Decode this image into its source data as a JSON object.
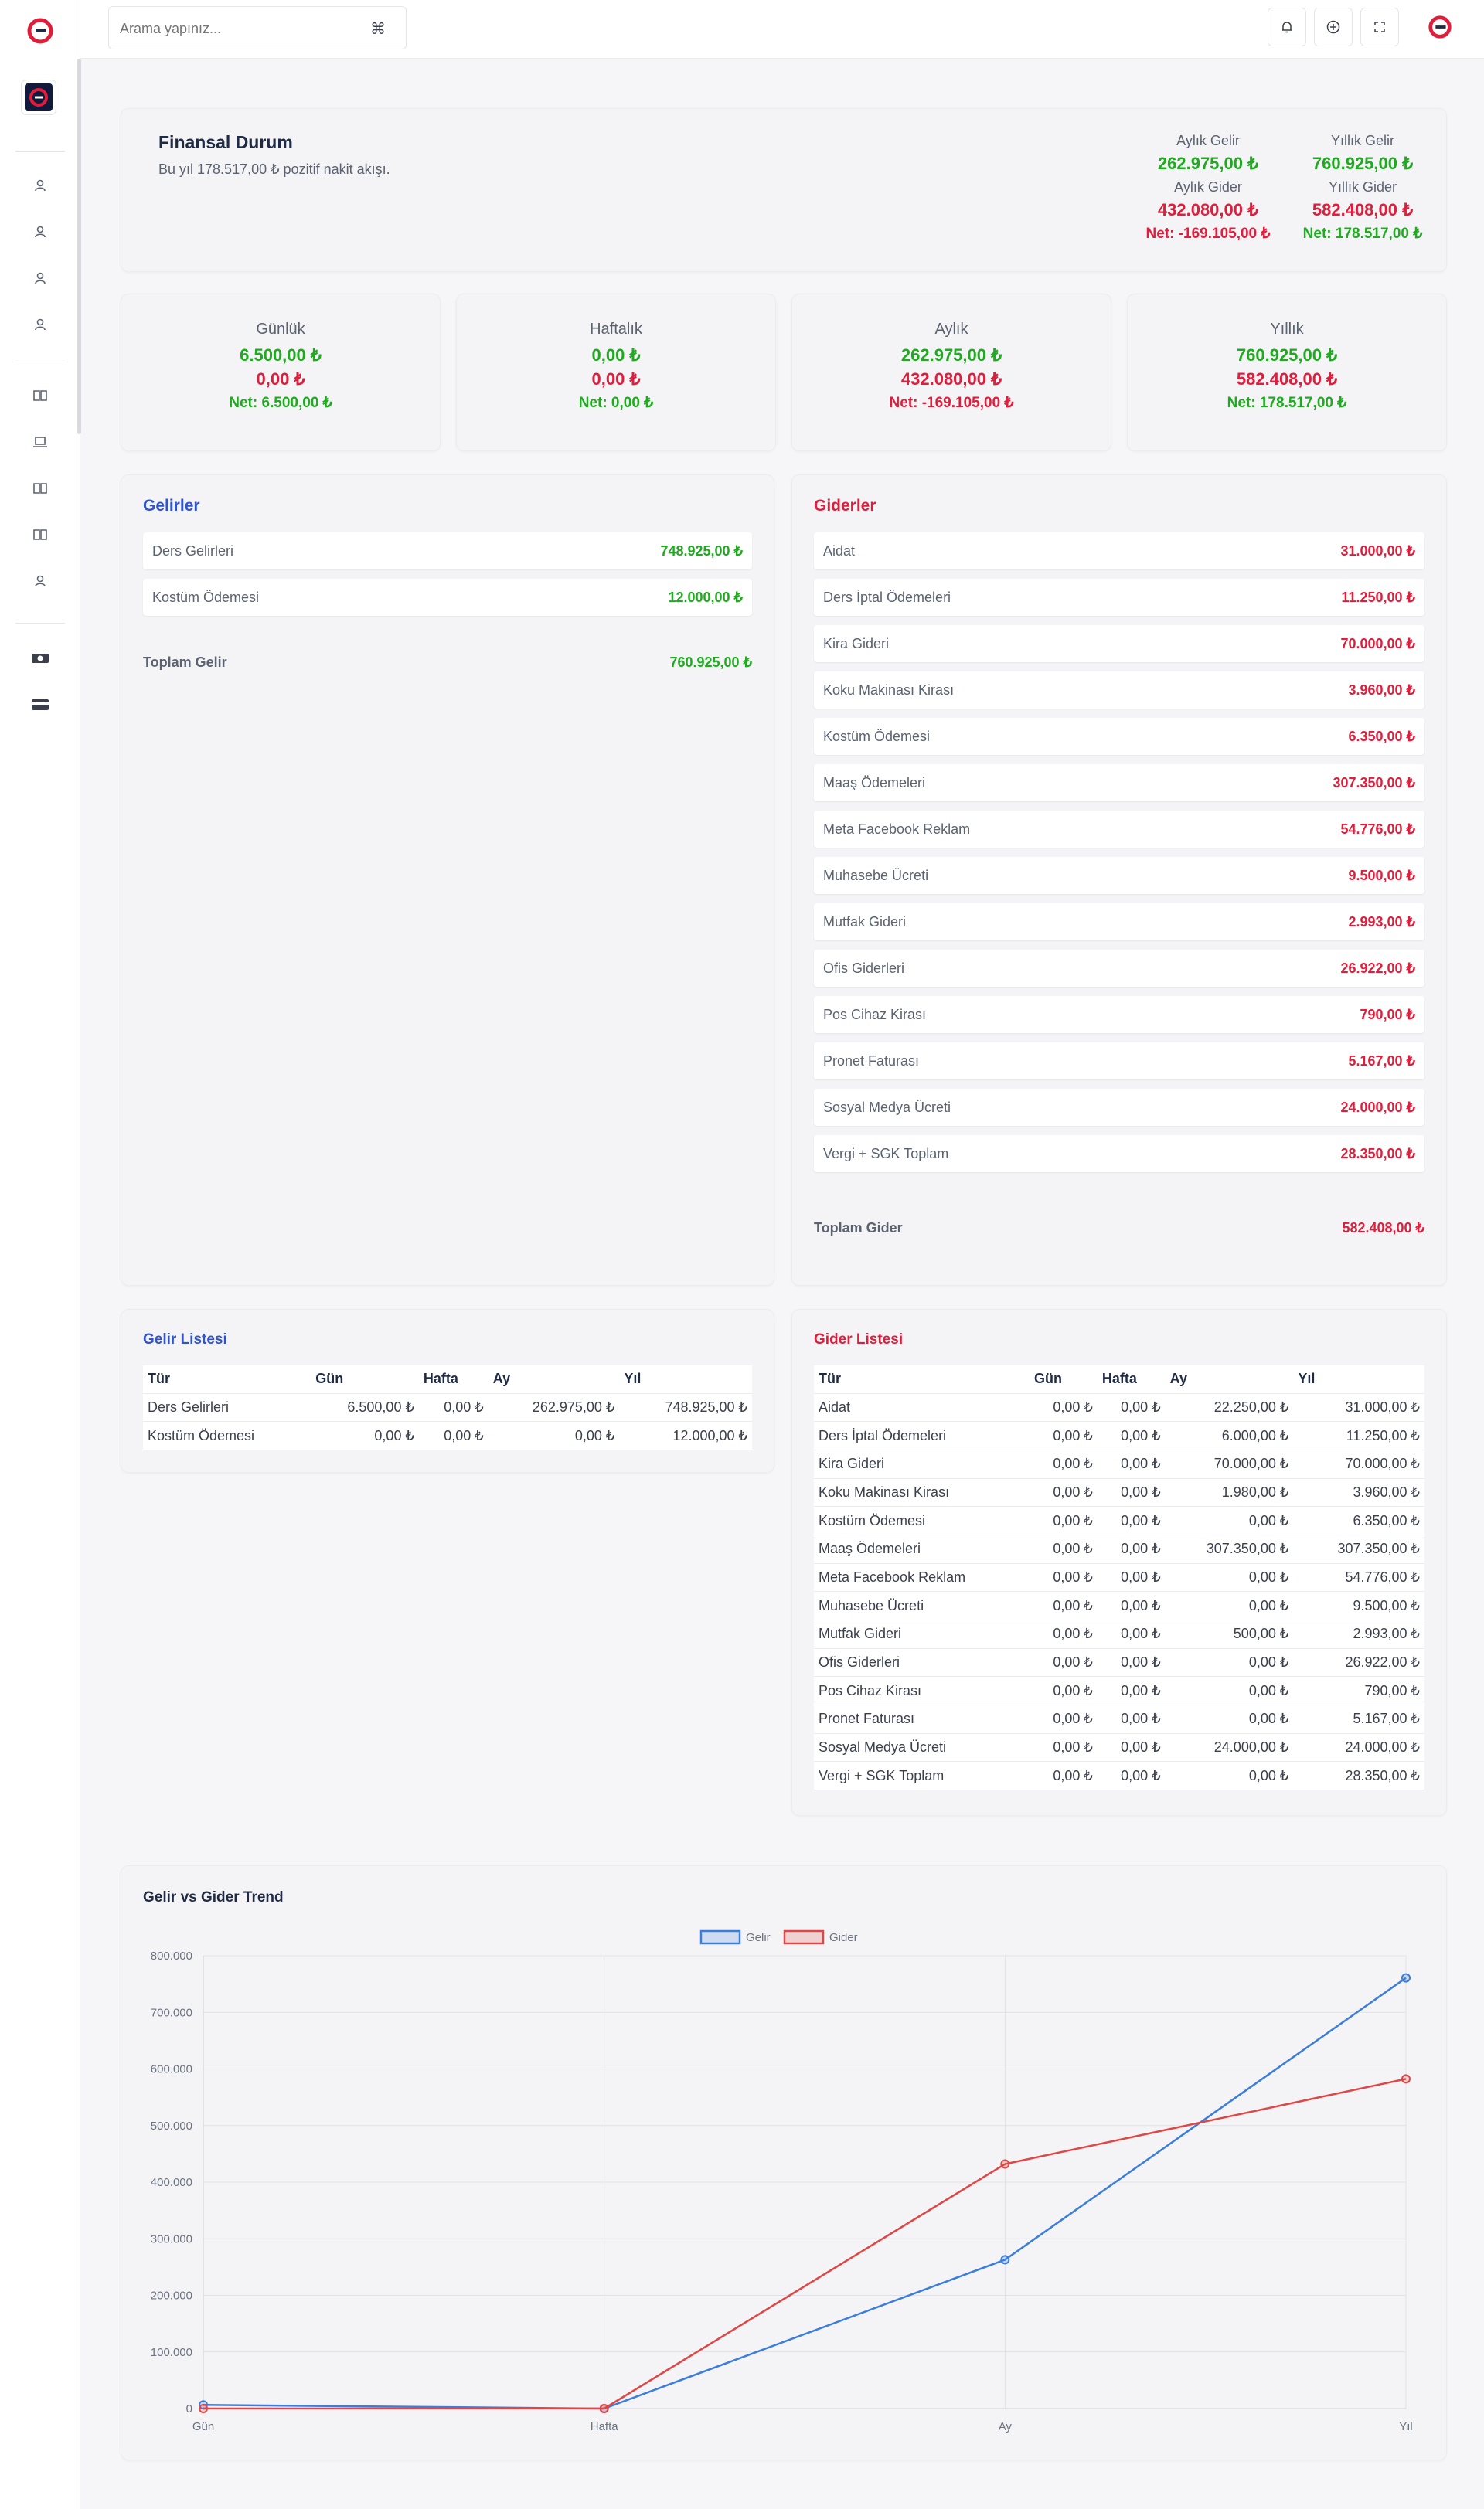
{
  "topbar": {
    "search_placeholder": "Arama yapınız...",
    "shortcut_icon": "command-icon"
  },
  "financial": {
    "title": "Finansal Durum",
    "subtitle": "Bu yıl 178.517,00 ₺ pozitif nakit akışı.",
    "monthly_income_label": "Aylık Gelir",
    "monthly_income": "262.975,00 ₺",
    "monthly_expense_label": "Aylık Gider",
    "monthly_expense": "432.080,00 ₺",
    "monthly_net": "Net: -169.105,00 ₺",
    "yearly_income_label": "Yıllık Gelir",
    "yearly_income": "760.925,00 ₺",
    "yearly_expense_label": "Yıllık Gider",
    "yearly_expense": "582.408,00 ₺",
    "yearly_net": "Net: 178.517,00 ₺"
  },
  "periods": [
    {
      "title": "Günlük",
      "income": "6.500,00 ₺",
      "expense": "0,00 ₺",
      "net": "Net: 6.500,00 ₺"
    },
    {
      "title": "Haftalık",
      "income": "0,00 ₺",
      "expense": "0,00 ₺",
      "net": "Net: 0,00 ₺"
    },
    {
      "title": "Aylık",
      "income": "262.975,00 ₺",
      "expense": "432.080,00 ₺",
      "net": "Net: -169.105,00 ₺"
    },
    {
      "title": "Yıllık",
      "income": "760.925,00 ₺",
      "expense": "582.408,00 ₺",
      "net": "Net: 178.517,00 ₺"
    }
  ],
  "incomes": {
    "title": "Gelirler",
    "items": [
      {
        "name": "Ders Gelirleri",
        "value": "748.925,00 ₺"
      },
      {
        "name": "Kostüm Ödemesi",
        "value": "12.000,00 ₺"
      }
    ],
    "total_label": "Toplam Gelir",
    "total_value": "760.925,00 ₺"
  },
  "expenses": {
    "title": "Giderler",
    "items": [
      {
        "name": "Aidat",
        "value": "31.000,00 ₺"
      },
      {
        "name": "Ders İptal Ödemeleri",
        "value": "11.250,00 ₺"
      },
      {
        "name": "Kira Gideri",
        "value": "70.000,00 ₺"
      },
      {
        "name": "Koku Makinası Kirası",
        "value": "3.960,00 ₺"
      },
      {
        "name": "Kostüm Ödemesi",
        "value": "6.350,00 ₺"
      },
      {
        "name": "Maaş Ödemeleri",
        "value": "307.350,00 ₺"
      },
      {
        "name": "Meta Facebook Reklam",
        "value": "54.776,00 ₺"
      },
      {
        "name": "Muhasebe Ücreti",
        "value": "9.500,00 ₺"
      },
      {
        "name": "Mutfak Gideri",
        "value": "2.993,00 ₺"
      },
      {
        "name": "Ofis Giderleri",
        "value": "26.922,00 ₺"
      },
      {
        "name": "Pos Cihaz Kirası",
        "value": "790,00 ₺"
      },
      {
        "name": "Pronet Faturası",
        "value": "5.167,00 ₺"
      },
      {
        "name": "Sosyal Medya Ücreti",
        "value": "24.000,00 ₺"
      },
      {
        "name": "Vergi + SGK Toplam",
        "value": "28.350,00 ₺"
      }
    ],
    "total_label": "Toplam Gider",
    "total_value": "582.408,00 ₺"
  },
  "income_table": {
    "title": "Gelir Listesi",
    "headers": [
      "Tür",
      "Gün",
      "Hafta",
      "Ay",
      "Yıl"
    ],
    "rows": [
      [
        "Ders Gelirleri",
        "6.500,00 ₺",
        "0,00 ₺",
        "262.975,00 ₺",
        "748.925,00 ₺"
      ],
      [
        "Kostüm Ödemesi",
        "0,00 ₺",
        "0,00 ₺",
        "0,00 ₺",
        "12.000,00 ₺"
      ]
    ]
  },
  "expense_table": {
    "title": "Gider Listesi",
    "headers": [
      "Tür",
      "Gün",
      "Hafta",
      "Ay",
      "Yıl"
    ],
    "rows": [
      [
        "Aidat",
        "0,00 ₺",
        "0,00 ₺",
        "22.250,00 ₺",
        "31.000,00 ₺"
      ],
      [
        "Ders İptal Ödemeleri",
        "0,00 ₺",
        "0,00 ₺",
        "6.000,00 ₺",
        "11.250,00 ₺"
      ],
      [
        "Kira Gideri",
        "0,00 ₺",
        "0,00 ₺",
        "70.000,00 ₺",
        "70.000,00 ₺"
      ],
      [
        "Koku Makinası Kirası",
        "0,00 ₺",
        "0,00 ₺",
        "1.980,00 ₺",
        "3.960,00 ₺"
      ],
      [
        "Kostüm Ödemesi",
        "0,00 ₺",
        "0,00 ₺",
        "0,00 ₺",
        "6.350,00 ₺"
      ],
      [
        "Maaş Ödemeleri",
        "0,00 ₺",
        "0,00 ₺",
        "307.350,00 ₺",
        "307.350,00 ₺"
      ],
      [
        "Meta Facebook Reklam",
        "0,00 ₺",
        "0,00 ₺",
        "0,00 ₺",
        "54.776,00 ₺"
      ],
      [
        "Muhasebe Ücreti",
        "0,00 ₺",
        "0,00 ₺",
        "0,00 ₺",
        "9.500,00 ₺"
      ],
      [
        "Mutfak Gideri",
        "0,00 ₺",
        "0,00 ₺",
        "500,00 ₺",
        "2.993,00 ₺"
      ],
      [
        "Ofis Giderleri",
        "0,00 ₺",
        "0,00 ₺",
        "0,00 ₺",
        "26.922,00 ₺"
      ],
      [
        "Pos Cihaz Kirası",
        "0,00 ₺",
        "0,00 ₺",
        "0,00 ₺",
        "790,00 ₺"
      ],
      [
        "Pronet Faturası",
        "0,00 ₺",
        "0,00 ₺",
        "0,00 ₺",
        "5.167,00 ₺"
      ],
      [
        "Sosyal Medya Ücreti",
        "0,00 ₺",
        "0,00 ₺",
        "24.000,00 ₺",
        "24.000,00 ₺"
      ],
      [
        "Vergi + SGK Toplam",
        "0,00 ₺",
        "0,00 ₺",
        "0,00 ₺",
        "28.350,00 ₺"
      ]
    ]
  },
  "colors": {
    "income": "#1faa1f",
    "expense": "#e01e3c",
    "gelir_line": "#3b7ddd",
    "gider_line": "#e04646"
  },
  "chart_data": {
    "type": "line",
    "title": "Gelir vs Gider Trend",
    "categories": [
      "Gün",
      "Hafta",
      "Ay",
      "Yıl"
    ],
    "series": [
      {
        "name": "Gelir",
        "values": [
          6500,
          0,
          262975,
          760925
        ]
      },
      {
        "name": "Gider",
        "values": [
          0,
          0,
          432080,
          582408
        ]
      }
    ],
    "ylim": [
      0,
      800000
    ],
    "yticks": [
      0,
      100000,
      200000,
      300000,
      400000,
      500000,
      600000,
      700000,
      800000
    ],
    "ytick_labels": [
      "0",
      "100.000",
      "200.000",
      "300.000",
      "400.000",
      "500.000",
      "600.000",
      "700.000",
      "800.000"
    ],
    "grid": true,
    "legend": "top-center"
  }
}
